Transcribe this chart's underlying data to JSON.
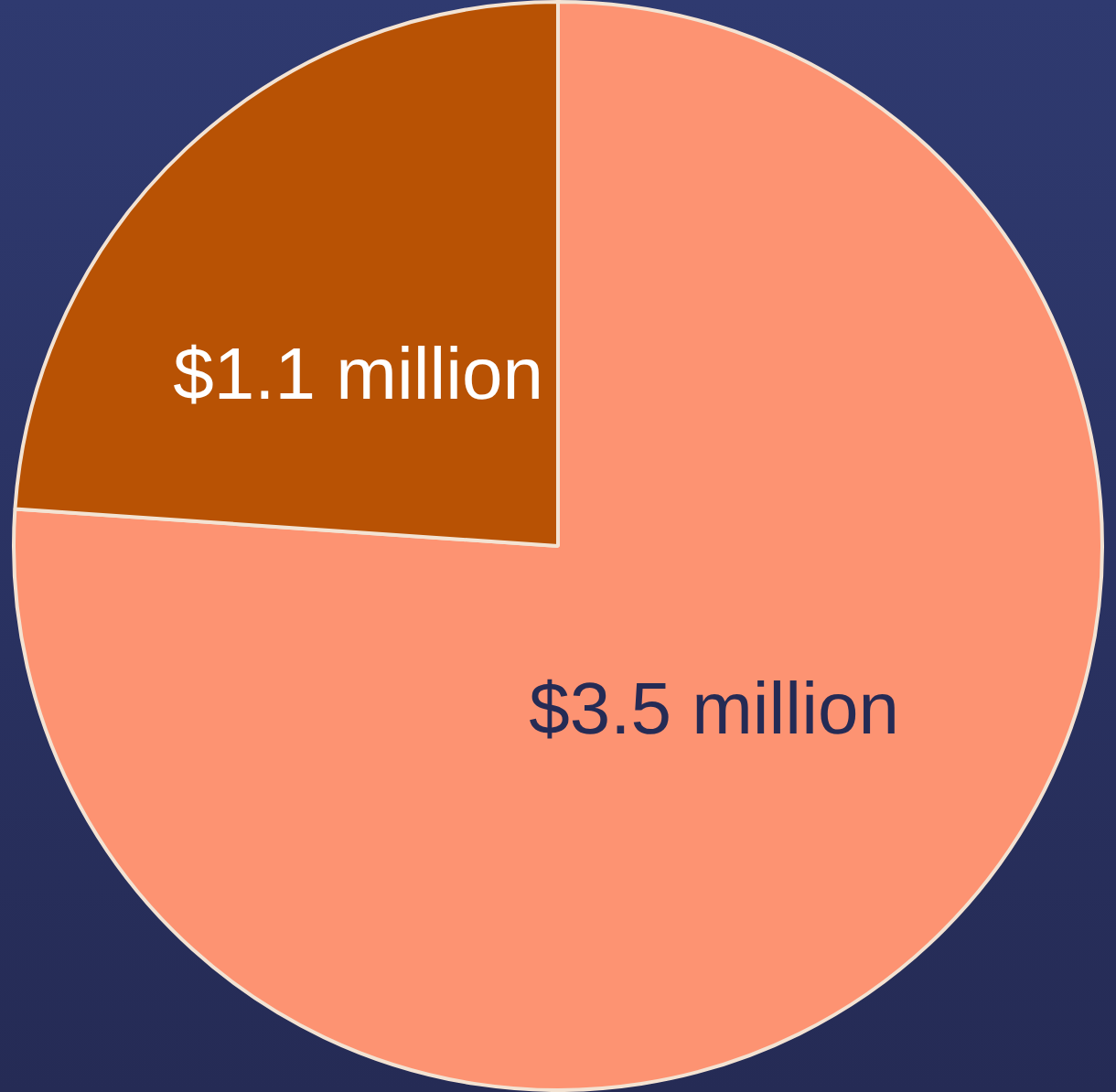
{
  "chart_data": {
    "type": "pie",
    "categories": [
      null,
      null
    ],
    "values": [
      3.5,
      1.1
    ],
    "colors": [
      "#fd9372",
      "#b85204"
    ],
    "value_labels": [
      "$3.5 million",
      "$1.1 million"
    ],
    "legend": false
  }
}
